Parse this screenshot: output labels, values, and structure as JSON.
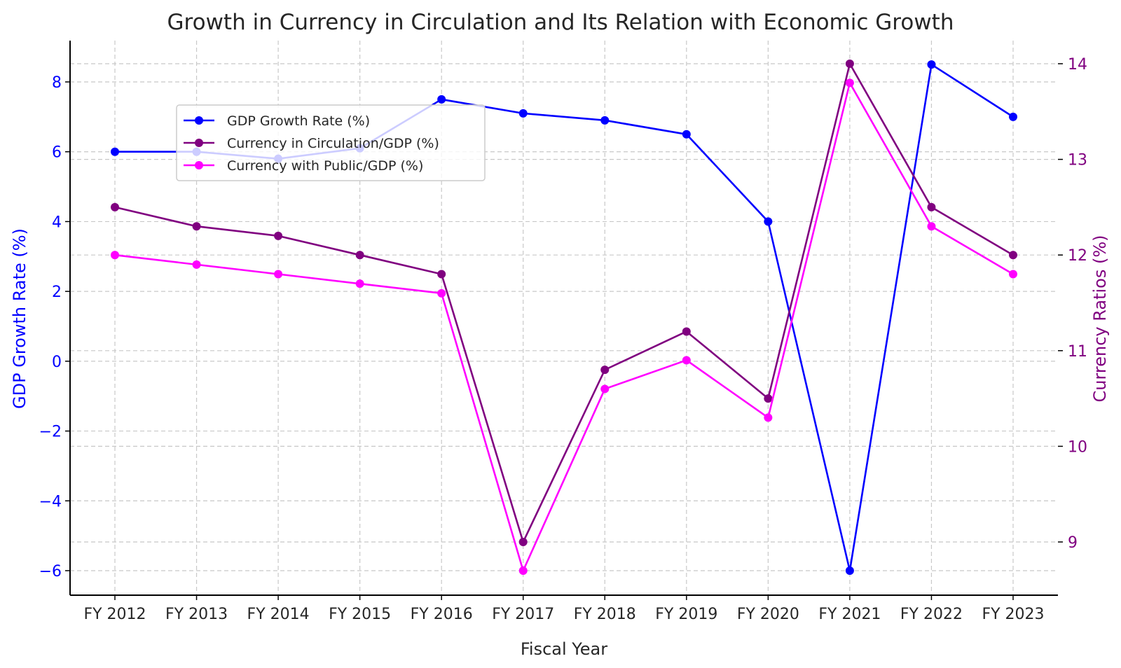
{
  "chart_data": {
    "type": "line",
    "title": "Growth in Currency in Circulation and Its Relation with Economic Growth",
    "xlabel": "Fiscal Year",
    "ylabel": "GDP Growth Rate (%)",
    "ylabel_right": "Currency Ratios (%)",
    "categories": [
      "FY 2012",
      "FY 2013",
      "FY 2014",
      "FY 2015",
      "FY 2016",
      "FY 2017",
      "FY 2018",
      "FY 2019",
      "FY 2020",
      "FY 2021",
      "FY 2022",
      "FY 2023"
    ],
    "series": [
      {
        "name": "GDP Growth Rate (%)",
        "axis": "left",
        "color": "#0000ff",
        "values": [
          6.0,
          6.0,
          5.8,
          6.1,
          7.5,
          7.1,
          6.9,
          6.5,
          4.0,
          -6.0,
          8.5,
          7.0
        ]
      },
      {
        "name": "Currency in Circulation/GDP (%)",
        "axis": "right",
        "color": "#800080",
        "values": [
          12.5,
          12.3,
          12.2,
          12.0,
          11.8,
          9.0,
          10.8,
          11.2,
          10.5,
          14.0,
          12.5,
          12.0
        ]
      },
      {
        "name": "Currency with Public/GDP (%)",
        "axis": "right",
        "color": "#ff00ff",
        "values": [
          12.0,
          11.9,
          11.8,
          11.7,
          11.6,
          8.7,
          10.6,
          10.9,
          10.3,
          13.8,
          12.3,
          11.8
        ]
      }
    ],
    "ylim": [
      -6.7,
      9.3
    ],
    "ylim_right": [
      8.48,
      14.27
    ],
    "yticks": [
      -6,
      -4,
      -2,
      0,
      2,
      4,
      6,
      8
    ],
    "yticks_right": [
      9,
      10,
      11,
      12,
      13,
      14
    ],
    "ytick_labels": [
      "−6",
      "−4",
      "−2",
      "0",
      "2",
      "4",
      "6",
      "8"
    ],
    "yticks_right_labels": [
      "9",
      "10",
      "11",
      "12",
      "13",
      "14"
    ],
    "grid": true,
    "legend_position": "upper left (inset)",
    "left_axis_color": "#0000ff",
    "right_axis_color": "#800080"
  }
}
